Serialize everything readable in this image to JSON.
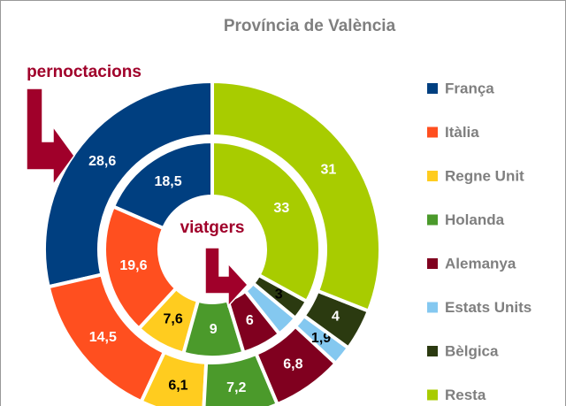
{
  "chart_data": {
    "type": "doughnut",
    "title": "Província de València",
    "categories": [
      "França",
      "Itàlia",
      "Regne Unit",
      "Holanda",
      "Alemanya",
      "Estats Units",
      "Bèlgica",
      "Resta"
    ],
    "colors": [
      "#003f80",
      "#ff4f1f",
      "#ffcc1f",
      "#4b9a2b",
      "#80001f",
      "#84c8f0",
      "#2b3a10",
      "#a8cc00"
    ],
    "series": [
      {
        "name": "pernoctacions",
        "values": [
          28.6,
          14.5,
          6.1,
          7.2,
          6.8,
          1.9,
          4,
          31
        ],
        "value_labels": [
          "28,6",
          "14,5",
          "6,1",
          "7,2",
          "6,8",
          "1,9",
          "4",
          "31"
        ]
      },
      {
        "name": "viatgers",
        "values": [
          18.5,
          19.6,
          7.6,
          9,
          6,
          3.3,
          3,
          33
        ],
        "value_labels": [
          "18,5",
          "19,6",
          "7,6",
          "9",
          "6",
          null,
          "3",
          "33"
        ]
      }
    ]
  }
}
